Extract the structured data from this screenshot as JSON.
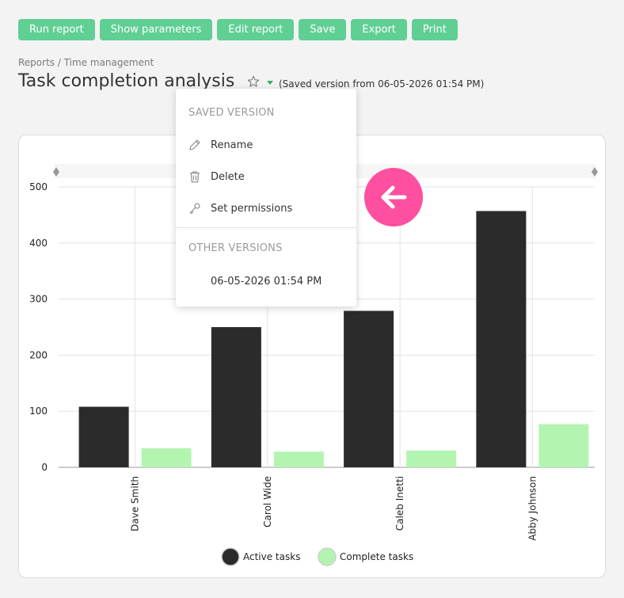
{
  "toolbar": {
    "buttons": [
      "Run report",
      "Show parameters",
      "Edit report",
      "Save",
      "Export",
      "Print"
    ]
  },
  "breadcrumb": "Reports / Time management",
  "title": "Task completion analysis",
  "version_note": "(Saved version from 06-05-2026 01:54 PM)",
  "icons": {
    "favorite": "star-outline-icon",
    "versions": "caret-down-icon",
    "rename": "pencil-icon",
    "delete": "trash-icon",
    "permissions": "key-icon",
    "back": "arrow-left-icon"
  },
  "menu": {
    "saved_version_header": "SAVED VERSION",
    "items": [
      "Rename",
      "Delete",
      "Set permissions"
    ],
    "other_versions_header": "OTHER VERSIONS",
    "versions": [
      "06-05-2026 01:54 PM"
    ]
  },
  "colors": {
    "toolbar_button": "#5fcf93",
    "active_tasks": "#2b2b2b",
    "complete_tasks": "#b3f5b0",
    "back_button": "#ff4fa0"
  },
  "chart_data": {
    "type": "bar",
    "categories": [
      "Dave Smith",
      "Carol Wide",
      "Caleb Inetti",
      "Abby Johnson"
    ],
    "series": [
      {
        "name": "Active tasks",
        "values": [
          108,
          250,
          279,
          457
        ]
      },
      {
        "name": "Complete tasks",
        "values": [
          34,
          28,
          30,
          77
        ]
      }
    ],
    "y_ticks": [
      0,
      100,
      200,
      300,
      400,
      500
    ],
    "ylim": [
      0,
      500
    ],
    "grid": true,
    "legend_position": "bottom"
  }
}
